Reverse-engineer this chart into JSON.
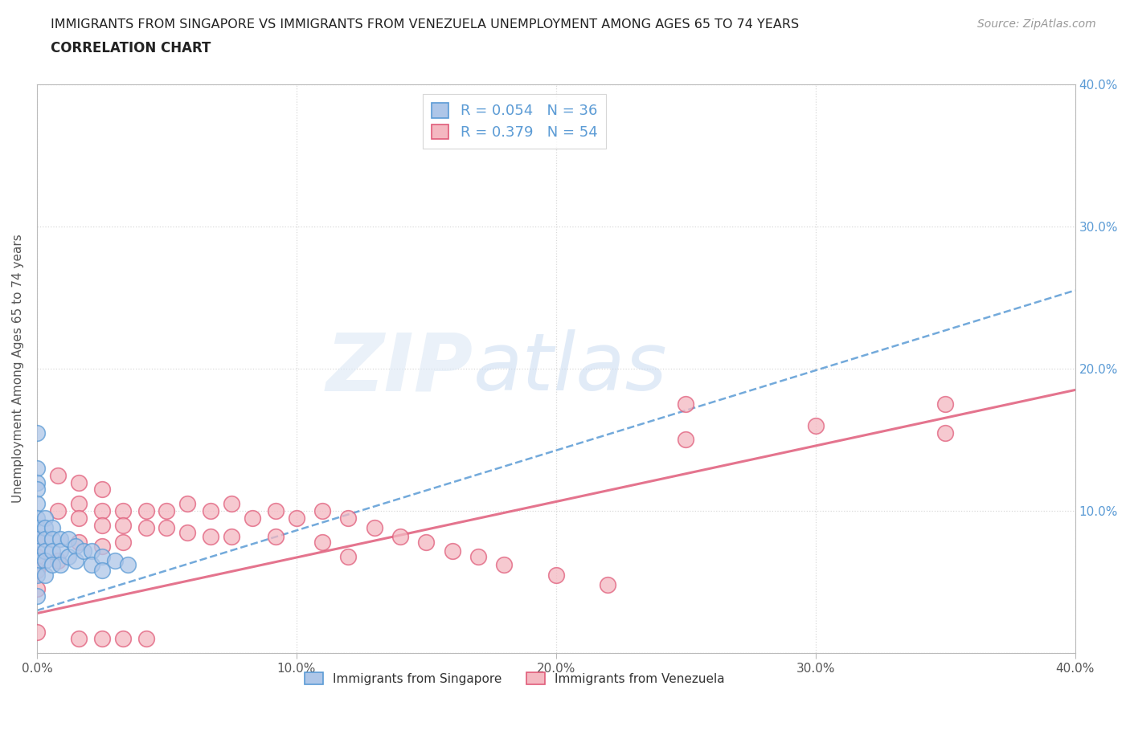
{
  "title_line1": "IMMIGRANTS FROM SINGAPORE VS IMMIGRANTS FROM VENEZUELA UNEMPLOYMENT AMONG AGES 65 TO 74 YEARS",
  "title_line2": "CORRELATION CHART",
  "source": "Source: ZipAtlas.com",
  "ylabel": "Unemployment Among Ages 65 to 74 years",
  "xlim": [
    0.0,
    0.4
  ],
  "ylim": [
    0.0,
    0.4
  ],
  "xticks": [
    0.0,
    0.1,
    0.2,
    0.3,
    0.4
  ],
  "yticks": [
    0.0,
    0.1,
    0.2,
    0.3,
    0.4
  ],
  "singapore_color": "#aec6e8",
  "singapore_edge": "#5b9bd5",
  "venezuela_color": "#f4b8c1",
  "venezuela_edge": "#e05c7a",
  "singapore_R": 0.054,
  "singapore_N": 36,
  "venezuela_R": 0.379,
  "venezuela_N": 54,
  "watermark_ZIP": "ZIP",
  "watermark_atlas": "atlas",
  "sg_trend_x0": 0.0,
  "sg_trend_y0": 0.03,
  "sg_trend_x1": 0.4,
  "sg_trend_y1": 0.255,
  "ve_trend_x0": 0.0,
  "ve_trend_y0": 0.028,
  "ve_trend_x1": 0.4,
  "ve_trend_y1": 0.185,
  "singapore_x": [
    0.0,
    0.0,
    0.0,
    0.0,
    0.0,
    0.0,
    0.0,
    0.0,
    0.0,
    0.0,
    0.0,
    0.0,
    0.003,
    0.003,
    0.003,
    0.003,
    0.003,
    0.003,
    0.006,
    0.006,
    0.006,
    0.006,
    0.009,
    0.009,
    0.009,
    0.012,
    0.012,
    0.015,
    0.015,
    0.018,
    0.021,
    0.021,
    0.025,
    0.025,
    0.03,
    0.035
  ],
  "singapore_y": [
    0.155,
    0.13,
    0.12,
    0.115,
    0.105,
    0.095,
    0.088,
    0.08,
    0.072,
    0.065,
    0.055,
    0.04,
    0.095,
    0.088,
    0.08,
    0.072,
    0.065,
    0.055,
    0.088,
    0.08,
    0.072,
    0.062,
    0.08,
    0.072,
    0.062,
    0.08,
    0.068,
    0.075,
    0.065,
    0.072,
    0.072,
    0.062,
    0.068,
    0.058,
    0.065,
    0.062
  ],
  "venezuela_x": [
    0.0,
    0.0,
    0.0,
    0.0,
    0.0,
    0.008,
    0.008,
    0.008,
    0.016,
    0.016,
    0.016,
    0.016,
    0.016,
    0.025,
    0.025,
    0.025,
    0.025,
    0.025,
    0.033,
    0.033,
    0.033,
    0.033,
    0.042,
    0.042,
    0.042,
    0.05,
    0.05,
    0.058,
    0.058,
    0.067,
    0.067,
    0.075,
    0.075,
    0.083,
    0.092,
    0.092,
    0.1,
    0.11,
    0.11,
    0.12,
    0.12,
    0.13,
    0.14,
    0.15,
    0.16,
    0.17,
    0.18,
    0.2,
    0.22,
    0.25,
    0.25,
    0.3,
    0.35,
    0.35
  ],
  "venezuela_y": [
    0.08,
    0.068,
    0.058,
    0.045,
    0.015,
    0.125,
    0.1,
    0.065,
    0.12,
    0.105,
    0.095,
    0.078,
    0.01,
    0.115,
    0.1,
    0.09,
    0.075,
    0.01,
    0.1,
    0.09,
    0.078,
    0.01,
    0.1,
    0.088,
    0.01,
    0.1,
    0.088,
    0.105,
    0.085,
    0.1,
    0.082,
    0.105,
    0.082,
    0.095,
    0.1,
    0.082,
    0.095,
    0.1,
    0.078,
    0.095,
    0.068,
    0.088,
    0.082,
    0.078,
    0.072,
    0.068,
    0.062,
    0.055,
    0.048,
    0.175,
    0.15,
    0.16,
    0.175,
    0.155
  ],
  "background_color": "#ffffff",
  "grid_color": "#d0d0d0",
  "title_color": "#222222",
  "axis_label_color": "#555555",
  "tick_color": "#555555",
  "right_tick_color": "#5b9bd5"
}
